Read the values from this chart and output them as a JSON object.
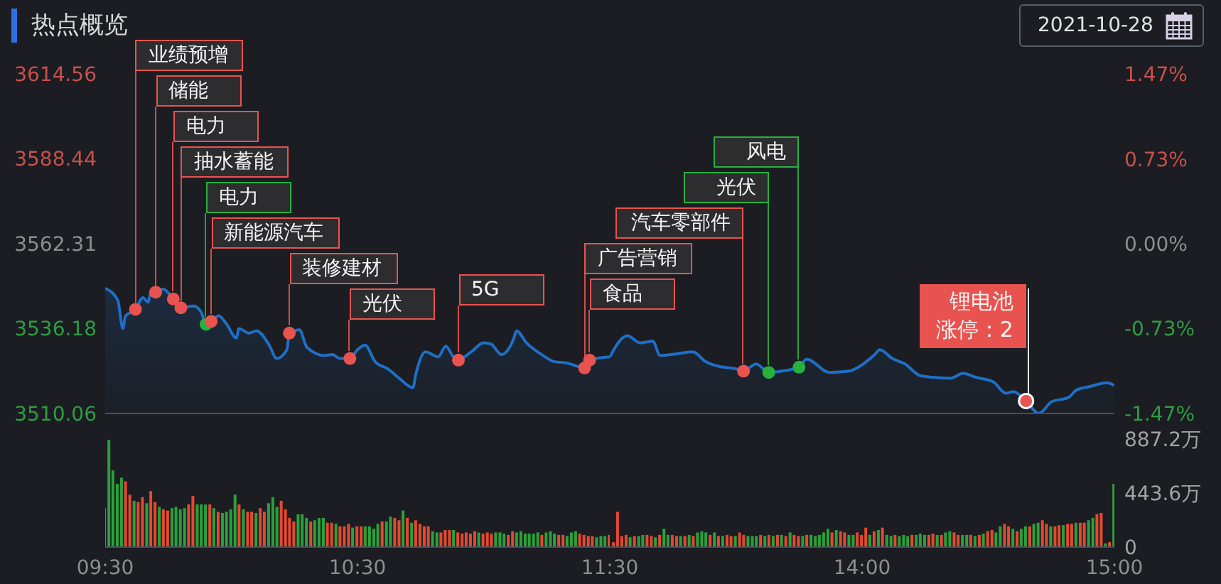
{
  "chart_data": [
    {
      "type": "area",
      "title": "热点概览",
      "x": [
        9.5,
        9.55,
        9.57,
        9.58,
        9.62,
        9.65,
        9.67,
        9.68,
        9.7,
        9.73,
        9.77,
        9.8,
        9.85,
        9.88,
        9.9,
        9.92,
        9.95,
        9.98,
        10.02,
        10.03,
        10.07,
        10.1,
        10.15,
        10.18,
        10.22,
        10.23,
        10.27,
        10.3,
        10.37,
        10.4,
        10.43,
        10.47,
        10.5,
        10.53,
        10.57,
        10.62,
        10.67,
        10.72,
        10.73,
        10.77,
        10.82,
        10.85,
        10.88,
        10.9,
        10.95,
        11.0,
        11.03,
        11.07,
        11.12,
        11.13,
        11.17,
        11.23,
        11.28,
        11.33,
        11.4,
        11.42,
        11.5
      ],
      "xlim": [
        9.5,
        11.5
      ],
      "ylim": [
        3510.06,
        3614.56
      ],
      "yticks": [
        3510.06,
        3536.18,
        3562.31,
        3588.44,
        3614.56
      ],
      "tick_labels": "y",
      "series": [
        {
          "color": "#1f6fc6",
          "values": [
            3548.6,
            3544.9,
            3536.2,
            3540.0,
            3542.1,
            3545.7,
            3544.3,
            3547.1,
            3547.4,
            3548.3,
            3545.3,
            3542.6,
            3543.1,
            3541.3,
            3537.5,
            3538.4,
            3540.1,
            3537.7,
            3533.3,
            3536.2,
            3534.8,
            3535.5,
            3531.1,
            3527.0,
            3529.7,
            3534.8,
            3535.8,
            3530.4,
            3527.9,
            3528.2,
            3527.0,
            3527.0,
            3529.7,
            3531.1,
            3526.0,
            3523.8,
            3520.6,
            3518.0,
            3521.7,
            3529.0,
            3527.5,
            3530.8,
            3527.5,
            3526.5,
            3529.0,
            3531.8,
            3531.4,
            3528.2,
            3533.3,
            3535.5,
            3531.8,
            3528.2,
            3526.0,
            3525.6,
            3524.1,
            3526.5,
            3527.5
          ]
        },
        {
          "type": "scatter",
          "x": [
            9.62,
            9.7,
            9.77,
            9.8,
            9.9,
            9.92,
            10.23,
            10.47,
            10.9,
            11.4,
            11.42
          ],
          "values": [
            3542.1,
            3547.4,
            3545.3,
            3542.6,
            3537.5,
            3538.4,
            3534.8,
            3527.0,
            3526.5,
            3524.1,
            3526.5
          ],
          "colors": [
            "#e8534f",
            "#e8534f",
            "#e8534f",
            "#e8534f",
            "#27b13f",
            "#e8534f",
            "#e8534f",
            "#e8534f",
            "#e8534f",
            "#e8534f",
            "#e8534f"
          ]
        }
      ],
      "annotations": [
        {
          "text": "业绩预增",
          "x": 9.62,
          "y": 3542.1
        },
        {
          "text": "储能",
          "x": 9.7,
          "y": 3547.4
        },
        {
          "text": "电力",
          "x": 9.77,
          "y": 3545.3
        },
        {
          "text": "抽水蓄能",
          "x": 9.8,
          "y": 3542.6
        },
        {
          "text": "电力",
          "x": 9.9,
          "y": 3537.5
        },
        {
          "text": "新能源汽车",
          "x": 9.92,
          "y": 3538.4
        },
        {
          "text": "装修建材",
          "x": 10.23,
          "y": 3534.8
        },
        {
          "text": "光伏",
          "x": 10.47,
          "y": 3527.0
        },
        {
          "text": "5G",
          "x": 10.9,
          "y": 3526.5
        },
        {
          "text": "广告营销",
          "x": 11.4,
          "y": 3524.1
        },
        {
          "text": "食品",
          "x": 11.42,
          "y": 3526.5
        }
      ]
    },
    {
      "type": "area",
      "subtitle": "2021-10-28",
      "x": [
        13.0,
        13.07,
        13.12,
        13.17,
        13.2,
        13.27,
        13.33,
        13.38,
        13.43,
        13.5,
        13.53,
        13.58,
        13.63,
        13.68,
        13.75,
        13.78,
        13.87,
        13.95,
        13.98,
        14.05,
        14.07,
        14.12,
        14.17,
        14.23,
        14.28,
        14.35,
        14.4,
        14.45,
        14.52,
        14.57,
        14.6,
        14.65,
        14.7,
        14.75,
        14.82,
        14.85,
        14.9,
        14.97,
        15.0
      ],
      "xlim": [
        13,
        15
      ],
      "ylim": [
        3510.06,
        3614.56
      ],
      "y2lim": [
        -1.47,
        1.47
      ],
      "y2ticks": [
        {
          "value": -1.47,
          "label": "-1.47%"
        },
        {
          "value": -0.73,
          "label": "-0.73%"
        },
        {
          "value": 0,
          "label": "0.00%"
        },
        {
          "value": 0.73,
          "label": "0.73%"
        },
        {
          "value": 1.47,
          "label": "1.47%"
        }
      ],
      "tick_labels": "y2",
      "series": [
        {
          "color": "#1f6fc6",
          "values": [
            3527.5,
            3534.0,
            3531.8,
            3532.3,
            3527.9,
            3528.5,
            3529.0,
            3526.0,
            3524.6,
            3523.8,
            3523.1,
            3525.3,
            3522.7,
            3523.1,
            3524.3,
            3526.8,
            3522.7,
            3523.1,
            3524.1,
            3528.2,
            3529.7,
            3527.0,
            3525.3,
            3521.7,
            3521.2,
            3520.9,
            3522.4,
            3521.2,
            3519.8,
            3516.3,
            3516.8,
            3513.9,
            3510.1,
            3513.6,
            3515.1,
            3517.3,
            3518.3,
            3519.5,
            3518.7
          ]
        },
        {
          "type": "scatter",
          "x": [
            13.53,
            13.63,
            13.75,
            14.65
          ],
          "values": [
            3523.1,
            3522.7,
            3524.3,
            3513.9
          ],
          "colors": [
            "#e8534f",
            "#27b13f",
            "#27b13f",
            "#e8534f"
          ]
        }
      ],
      "annotations": [
        {
          "text": "汽车零部件",
          "x": 13.53,
          "y": 3523.1
        },
        {
          "text": "光伏",
          "x": 13.63,
          "y": 3522.7
        },
        {
          "text": "风电",
          "x": 13.75,
          "y": 3524.3
        },
        {
          "text": "锂电池",
          "x": 14.65,
          "y": 3513.9
        },
        {
          "text": "涨停：2",
          "x": 14.65,
          "y": 3513.9
        }
      ]
    },
    {
      "type": "bar",
      "x": [
        9.5,
        9.517,
        9.533,
        9.55,
        9.567,
        9.583,
        9.6,
        9.617,
        9.633,
        9.65,
        9.667,
        9.683,
        9.7,
        9.717,
        9.733,
        9.75,
        9.767,
        9.783,
        9.8,
        9.817,
        9.833,
        9.85,
        9.867,
        9.883,
        9.9,
        9.917,
        9.933,
        9.95,
        9.967,
        9.983,
        10.0,
        10.017,
        10.033,
        10.05,
        10.067,
        10.083,
        10.1,
        10.117,
        10.133,
        10.15,
        10.167,
        10.183,
        10.2,
        10.217,
        10.233,
        10.25,
        10.267,
        10.283,
        10.3,
        10.317,
        10.333,
        10.35,
        10.367,
        10.383,
        10.4,
        10.417,
        10.433,
        10.45,
        10.467,
        10.483,
        10.5,
        10.517,
        10.533,
        10.55,
        10.567,
        10.583,
        10.6,
        10.617,
        10.633,
        10.65,
        10.667,
        10.683,
        10.7,
        10.717,
        10.733,
        10.75,
        10.767,
        10.783,
        10.8,
        10.817,
        10.833,
        10.85,
        10.867,
        10.883,
        10.9,
        10.917,
        10.933,
        10.95,
        10.967,
        10.983,
        11.0,
        11.017,
        11.033,
        11.05,
        11.067,
        11.083,
        11.1,
        11.117,
        11.133,
        11.15,
        11.167,
        11.183,
        11.2,
        11.217,
        11.233,
        11.25,
        11.267,
        11.283,
        11.3,
        11.317,
        11.333,
        11.35,
        11.367,
        11.383,
        11.4,
        11.417,
        11.433,
        11.45,
        11.467,
        11.483,
        11.5
      ],
      "xlim": [
        9.5,
        11.5
      ],
      "xticks": [
        {
          "value": 9.5,
          "label": "09:30"
        },
        {
          "value": 10.5,
          "label": "10:30"
        },
        {
          "value": 11.5,
          "label": "11:30"
        }
      ],
      "y2lim": [
        0,
        887.2
      ],
      "tick_labels": "x",
      "series": [
        {
          "axis": "y2",
          "values": [
            320,
            880,
            630,
            520,
            570,
            540,
            430,
            380,
            370,
            410,
            360,
            460,
            370,
            330,
            310,
            300,
            320,
            330,
            310,
            320,
            350,
            420,
            350,
            350,
            350,
            350,
            320,
            290,
            280,
            290,
            310,
            430,
            350,
            310,
            290,
            290,
            280,
            320,
            290,
            360,
            410,
            330,
            380,
            310,
            240,
            210,
            270,
            270,
            240,
            210,
            220,
            240,
            240,
            200,
            200,
            190,
            170,
            170,
            190,
            160,
            170,
            170,
            170,
            170,
            150,
            190,
            210,
            210,
            250,
            240,
            220,
            300,
            240,
            200,
            220,
            190,
            170,
            170,
            130,
            120,
            120,
            140,
            140,
            140,
            120,
            110,
            120,
            110,
            130,
            120,
            110,
            120,
            110,
            120,
            120,
            110,
            100,
            130,
            120,
            130,
            110,
            110,
            110,
            120,
            100,
            120,
            130,
            110,
            100,
            100,
            90,
            120,
            130,
            110,
            100,
            90,
            90,
            80,
            90,
            90,
            100
          ],
          "colors": [
            "#2ba13a",
            "#2ba13a",
            "#2ba13a",
            "#2ba13a",
            "#2ba13a",
            "#e5492f",
            "#e5492f",
            "#2ba13a",
            "#e5492f",
            "#e5492f",
            "#2ba13a",
            "#e5492f",
            "#e5492f",
            "#2ba13a",
            "#e5492f",
            "#e5492f",
            "#2ba13a",
            "#2ba13a",
            "#2ba13a",
            "#2ba13a",
            "#e5492f",
            "#e5492f",
            "#2ba13a",
            "#2ba13a",
            "#2ba13a",
            "#e5492f",
            "#2ba13a",
            "#e5492f",
            "#2ba13a",
            "#2ba13a",
            "#2ba13a",
            "#2ba13a",
            "#e5492f",
            "#2ba13a",
            "#e5492f",
            "#e5492f",
            "#2ba13a",
            "#e5492f",
            "#e5492f",
            "#2ba13a",
            "#2ba13a",
            "#2ba13a",
            "#e5492f",
            "#e5492f",
            "#e5492f",
            "#e5492f",
            "#2ba13a",
            "#2ba13a",
            "#2ba13a",
            "#e5492f",
            "#2ba13a",
            "#2ba13a",
            "#2ba13a",
            "#e5492f",
            "#e5492f",
            "#2ba13a",
            "#e5492f",
            "#e5492f",
            "#e5492f",
            "#2ba13a",
            "#e5492f",
            "#e5492f",
            "#2ba13a",
            "#2ba13a",
            "#2ba13a",
            "#2ba13a",
            "#e5492f",
            "#2ba13a",
            "#2ba13a",
            "#e5492f",
            "#e5492f",
            "#2ba13a",
            "#e5492f",
            "#2ba13a",
            "#e5492f",
            "#e5492f",
            "#e5492f",
            "#e5492f",
            "#2ba13a",
            "#2ba13a",
            "#e5492f",
            "#e5492f",
            "#e5492f",
            "#2ba13a",
            "#e5492f",
            "#e5492f",
            "#e5492f",
            "#e5492f",
            "#e5492f",
            "#2ba13a",
            "#e5492f",
            "#e5492f",
            "#e5492f",
            "#2ba13a",
            "#2ba13a",
            "#2ba13a",
            "#e5492f",
            "#e5492f",
            "#2ba13a",
            "#2ba13a",
            "#2ba13a",
            "#2ba13a",
            "#2ba13a",
            "#2ba13a",
            "#e5492f",
            "#2ba13a",
            "#2ba13a",
            "#2ba13a",
            "#e5492f",
            "#e5492f",
            "#2ba13a",
            "#2ba13a",
            "#2ba13a",
            "#e5492f",
            "#e5492f",
            "#e5492f",
            "#e5492f",
            "#2ba13a",
            "#2ba13a",
            "#2ba13a",
            "#e5492f"
          ]
        }
      ]
    },
    {
      "type": "bar",
      "x": [
        13.017,
        13.033,
        13.05,
        13.067,
        13.083,
        13.1,
        13.117,
        13.133,
        13.15,
        13.167,
        13.183,
        13.2,
        13.217,
        13.233,
        13.25,
        13.267,
        13.283,
        13.3,
        13.317,
        13.333,
        13.35,
        13.367,
        13.383,
        13.4,
        13.417,
        13.433,
        13.45,
        13.467,
        13.483,
        13.5,
        13.517,
        13.533,
        13.55,
        13.567,
        13.583,
        13.6,
        13.617,
        13.633,
        13.65,
        13.667,
        13.683,
        13.7,
        13.717,
        13.733,
        13.75,
        13.767,
        13.783,
        13.8,
        13.817,
        13.833,
        13.85,
        13.867,
        13.883,
        13.9,
        13.917,
        13.933,
        13.95,
        13.967,
        13.983,
        14.0,
        14.017,
        14.033,
        14.05,
        14.067,
        14.083,
        14.1,
        14.117,
        14.133,
        14.15,
        14.167,
        14.183,
        14.2,
        14.217,
        14.233,
        14.25,
        14.267,
        14.283,
        14.3,
        14.317,
        14.333,
        14.35,
        14.367,
        14.383,
        14.4,
        14.417,
        14.433,
        14.45,
        14.467,
        14.483,
        14.5,
        14.517,
        14.533,
        14.55,
        14.567,
        14.583,
        14.6,
        14.617,
        14.633,
        14.65,
        14.667,
        14.683,
        14.7,
        14.717,
        14.733,
        14.75,
        14.767,
        14.783,
        14.8,
        14.817,
        14.833,
        14.85,
        14.867,
        14.883,
        14.9,
        14.917,
        14.933,
        14.95,
        14.967,
        14.983,
        15.0
      ],
      "xlim": [
        13,
        15
      ],
      "xticks": [
        {
          "value": 14,
          "label": "14:00"
        },
        {
          "value": 15,
          "label": "15:00"
        }
      ],
      "y2lim": [
        0,
        887.2
      ],
      "y2ticks": [
        0,
        {
          "value": 443.6,
          "label": "443.6万"
        },
        {
          "value": 887.2,
          "label": "887.2万"
        }
      ],
      "series": [
        {
          "axis": "y2",
          "values": [
            40,
            290,
            90,
            100,
            80,
            90,
            90,
            100,
            100,
            90,
            80,
            100,
            150,
            100,
            100,
            90,
            90,
            90,
            100,
            90,
            120,
            130,
            120,
            100,
            120,
            90,
            90,
            100,
            90,
            90,
            120,
            100,
            90,
            90,
            90,
            100,
            90,
            100,
            90,
            100,
            100,
            90,
            120,
            100,
            90,
            90,
            100,
            100,
            90,
            100,
            120,
            150,
            120,
            140,
            130,
            120,
            100,
            100,
            120,
            100,
            160,
            100,
            130,
            140,
            160,
            100,
            90,
            100,
            90,
            100,
            90,
            100,
            100,
            110,
            100,
            100,
            110,
            100,
            100,
            120,
            130,
            120,
            100,
            100,
            100,
            100,
            90,
            100,
            110,
            130,
            140,
            120,
            170,
            190,
            170,
            150,
            130,
            150,
            170,
            170,
            190,
            200,
            220,
            190,
            170,
            170,
            180,
            180,
            190,
            190,
            200,
            200,
            200,
            220,
            240,
            270,
            280,
            30,
            40,
            520
          ],
          "colors": [
            "#e5492f",
            "#e5492f",
            "#e5492f",
            "#e5492f",
            "#2ba13a",
            "#e5492f",
            "#2ba13a",
            "#2ba13a",
            "#e5492f",
            "#e5492f",
            "#2ba13a",
            "#e5492f",
            "#2ba13a",
            "#2ba13a",
            "#e5492f",
            "#e5492f",
            "#2ba13a",
            "#e5492f",
            "#2ba13a",
            "#e5492f",
            "#2ba13a",
            "#2ba13a",
            "#2ba13a",
            "#e5492f",
            "#2ba13a",
            "#e5492f",
            "#2ba13a",
            "#e5492f",
            "#e5492f",
            "#2ba13a",
            "#e5492f",
            "#e5492f",
            "#2ba13a",
            "#2ba13a",
            "#2ba13a",
            "#e5492f",
            "#2ba13a",
            "#e5492f",
            "#2ba13a",
            "#e5492f",
            "#2ba13a",
            "#e5492f",
            "#2ba13a",
            "#e5492f",
            "#e5492f",
            "#2ba13a",
            "#e5492f",
            "#2ba13a",
            "#2ba13a",
            "#2ba13a",
            "#2ba13a",
            "#2ba13a",
            "#e5492f",
            "#2ba13a",
            "#e5492f",
            "#e5492f",
            "#2ba13a",
            "#2ba13a",
            "#e5492f",
            "#e5492f",
            "#e5492f",
            "#2ba13a",
            "#e5492f",
            "#2ba13a",
            "#e5492f",
            "#2ba13a",
            "#2ba13a",
            "#e5492f",
            "#2ba13a",
            "#2ba13a",
            "#2ba13a",
            "#e5492f",
            "#2ba13a",
            "#2ba13a",
            "#2ba13a",
            "#e5492f",
            "#e5492f",
            "#2ba13a",
            "#e5492f",
            "#2ba13a",
            "#2ba13a",
            "#e5492f",
            "#e5492f",
            "#2ba13a",
            "#2ba13a",
            "#e5492f",
            "#2ba13a",
            "#e5492f",
            "#2ba13a",
            "#e5492f",
            "#e5492f",
            "#2ba13a",
            "#2ba13a",
            "#e5492f",
            "#e5492f",
            "#2ba13a",
            "#e5492f",
            "#2ba13a",
            "#2ba13a",
            "#e5492f",
            "#2ba13a",
            "#2ba13a",
            "#e5492f",
            "#e5492f",
            "#2ba13a",
            "#e5492f",
            "#e5492f",
            "#2ba13a",
            "#e5492f",
            "#e5492f",
            "#2ba13a",
            "#e5492f",
            "#e5492f",
            "#2ba13a",
            "#2ba13a",
            "#e5492f",
            "#e5492f",
            "#2ba13a",
            "#e5492f",
            "#2ba13a"
          ]
        }
      ]
    }
  ]
}
